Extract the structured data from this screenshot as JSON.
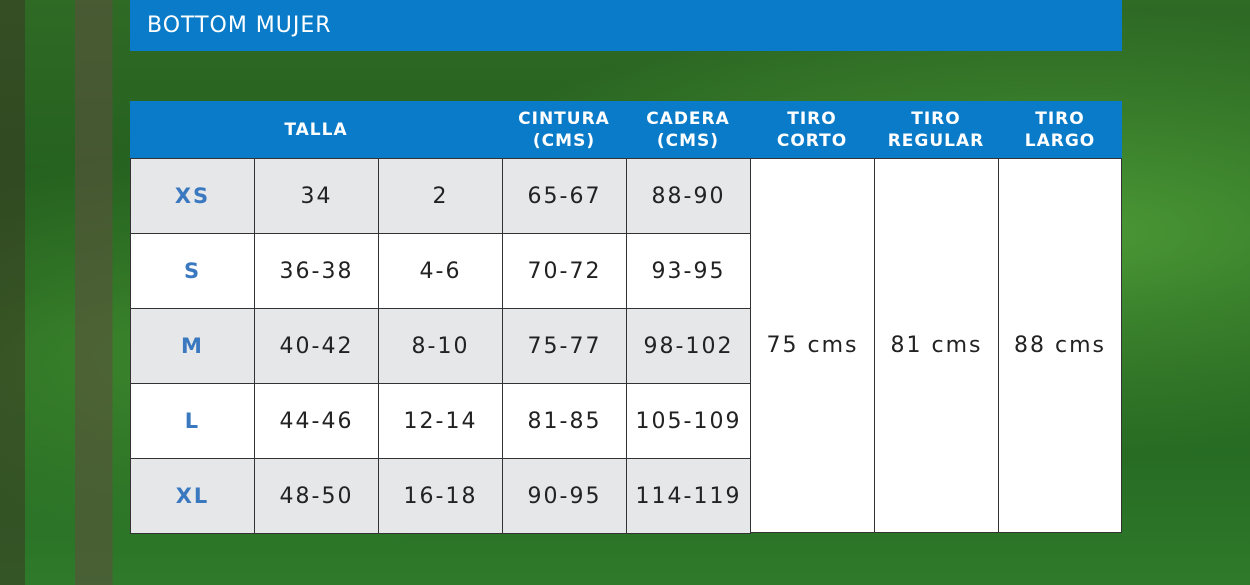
{
  "title": "BOTTOM MUJER",
  "headers": {
    "talla": "TALLA",
    "cintura": "CINTURA\n(CMS)",
    "cadera": "CADERA\n(CMS)",
    "tiro_corto": "TIRO\nCORTO",
    "tiro_regular": "TIRO\nREGULAR",
    "tiro_largo": "TIRO\nLARGO"
  },
  "rows": [
    {
      "size": "XS",
      "talla_eu": "34",
      "talla_us": "2",
      "cintura": "65-67",
      "cadera": "88-90"
    },
    {
      "size": "S",
      "talla_eu": "36-38",
      "talla_us": "4-6",
      "cintura": "70-72",
      "cadera": "93-95"
    },
    {
      "size": "M",
      "talla_eu": "40-42",
      "talla_us": "8-10",
      "cintura": "75-77",
      "cadera": "98-102"
    },
    {
      "size": "L",
      "talla_eu": "44-46",
      "talla_us": "12-14",
      "cintura": "81-85",
      "cadera": "105-109"
    },
    {
      "size": "XL",
      "talla_eu": "48-50",
      "talla_us": "16-18",
      "cintura": "90-95",
      "cadera": "114-119"
    }
  ],
  "tiro": {
    "corto": "75 cms",
    "regular": "81 cms",
    "largo": "88 cms"
  },
  "colors": {
    "header_blue": "#0a7bc8",
    "size_blue": "#3a78c0",
    "row_gray": "#e6e7e9"
  }
}
